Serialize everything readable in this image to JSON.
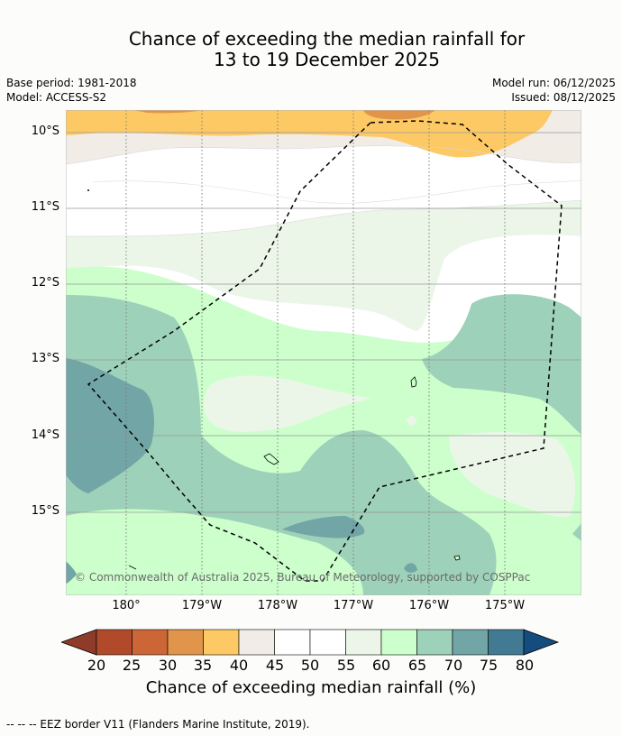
{
  "title_line1": "Chance of exceeding the median rainfall for",
  "title_line2": "13 to 19 December 2025",
  "base_period": "Base period: 1981-2018",
  "model": "Model: ACCESS-S2",
  "model_run": "Model run: 06/12/2025",
  "issued": "Issued: 08/12/2025",
  "lat_labels": [
    "10°S",
    "11°S",
    "12°S",
    "13°S",
    "14°S",
    "15°S"
  ],
  "lon_labels": [
    "180°",
    "179°W",
    "178°W",
    "177°W",
    "176°W",
    "175°W"
  ],
  "colorbar": {
    "ticks": [
      "20",
      "25",
      "30",
      "35",
      "40",
      "45",
      "50",
      "55",
      "60",
      "65",
      "70",
      "75",
      "80"
    ],
    "colors": [
      "#b14a2a",
      "#cc6636",
      "#e1954a",
      "#fdc964",
      "#f1ece6",
      "#ffffff",
      "#ffffff",
      "#ebf6e9",
      "#ccffcc",
      "#9dd1b9",
      "#71a5a6",
      "#427a94"
    ],
    "under_color": "#8e3b2a",
    "over_color": "#154c80",
    "label": "Chance of exceeding median rainfall (%)"
  },
  "copyright": "© Commonwealth of Australia 2025, Bureau of Meteorology, supported by COSPPac",
  "footer": "--  --  -- EEZ border V11 (Flanders Marine Institute, 2019)."
}
